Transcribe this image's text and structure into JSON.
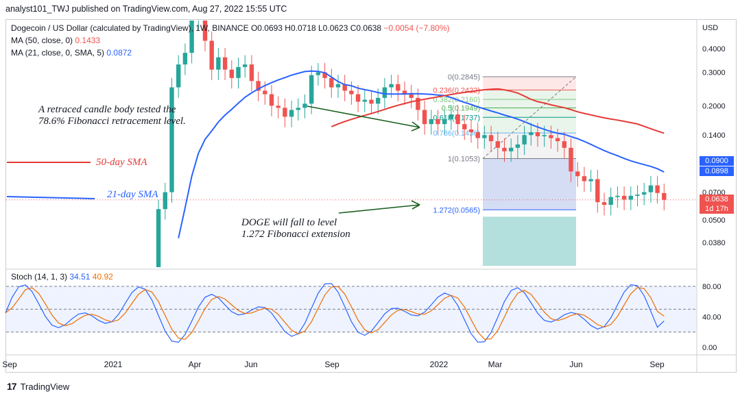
{
  "header": {
    "text": "analyst101_TWJ published on TradingView.com, Aug 27, 2022 15:55 UTC"
  },
  "legend": {
    "symbol": "Dogecoin / US Dollar (calculated by TradingView), 1W, BINANCE",
    "ohlc": "O0.0693  H0.0718  L0.0623  C0.0638",
    "change": "−0.0054 (−7.80%)",
    "ma50_label": "MA (50, close, 0)",
    "ma50_value": "0.1433",
    "ma21_label": "MA (21, close, 0, SMA, 5)",
    "ma21_value": "0.0872",
    "stoch_label": "Stoch (14, 1, 3)",
    "stoch_k": "34.51",
    "stoch_d": "40.92"
  },
  "annotations": {
    "retrace": [
      "A retraced candle body tested the",
      "78.6% Fibonacci retracement level."
    ],
    "fall": [
      "DOGE will fall to level",
      "1.272 Fibonacci extension"
    ],
    "sma50": "50-day SMA",
    "sma21": "21-day SMA"
  },
  "price_tags": {
    "ma21_a": "0.0900",
    "ma21_b": "0.0898",
    "last": "0.0638",
    "countdown": "1d 17h"
  },
  "footer": {
    "brand": "TradingView",
    "logo": "tradingview-logo-icon"
  },
  "colors": {
    "up": "#26a69a",
    "down": "#ef5350",
    "ma50": "#e53935",
    "ma21": "#2962ff",
    "stoch_k": "#2962ff",
    "stoch_d": "#ef6c00",
    "fib_gray": "#787b86"
  },
  "chart_data": [
    {
      "type": "candlestick",
      "title": "",
      "interval": "1W",
      "y_axis_unit": "USD",
      "y_scale": "log",
      "y_ticks": [
        0.038,
        0.05,
        0.07,
        0.09,
        0.14,
        0.2,
        0.3,
        0.4
      ],
      "y_tick_labels": [
        "0.0380",
        "0.0500",
        "0.0700",
        "0.0900",
        "0.1400",
        "0.2000",
        "0.3000",
        "0.4000"
      ],
      "x_tick_labels": [
        "Sep",
        "2021",
        "Apr",
        "Jun",
        "Sep",
        "2022",
        "Mar",
        "Jun",
        "Sep"
      ],
      "fibonacci_levels": [
        {
          "ratio": "0",
          "price": 0.2845,
          "label": "0(0.2845)"
        },
        {
          "ratio": "0.236",
          "price": 0.2422,
          "label": "0.236(0.2422)"
        },
        {
          "ratio": "0.382",
          "price": 0.216,
          "label": "0.382(0.2160)"
        },
        {
          "ratio": "0.5",
          "price": 0.1949,
          "label": "0.5(0.1949)"
        },
        {
          "ratio": "0.618",
          "price": 0.1737,
          "label": "0.618(0.1737)"
        },
        {
          "ratio": "0.786",
          "price": 0.1436,
          "label": "0.786(0.1436)"
        },
        {
          "ratio": "1",
          "price": 0.1053,
          "label": "1(0.1053)"
        },
        {
          "ratio": "1.272",
          "price": 0.0565,
          "label": "1.272(0.0565)"
        }
      ],
      "series": [
        {
          "name": "MA (50, close, 0)",
          "last": 0.1433
        },
        {
          "name": "MA (21, close, 0, SMA, 5)",
          "last": 0.0872
        }
      ],
      "last_close": 0.0638
    },
    {
      "type": "line",
      "title": "",
      "y_ticks": [
        0,
        40,
        80
      ],
      "y_tick_labels": [
        "0.00",
        "40.00",
        "80.00"
      ],
      "band": [
        20,
        80
      ],
      "series": [
        {
          "name": "Stoch %K",
          "last": 34.51
        },
        {
          "name": "Stoch %D",
          "last": 40.92
        }
      ]
    }
  ]
}
